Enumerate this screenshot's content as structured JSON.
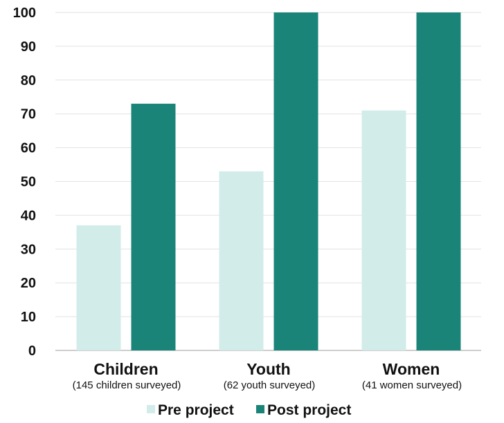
{
  "chart_data": {
    "type": "bar",
    "title": "",
    "xlabel": "",
    "ylabel": "",
    "ylim": [
      0,
      100
    ],
    "yticks": [
      0,
      10,
      20,
      30,
      40,
      50,
      60,
      70,
      80,
      90,
      100
    ],
    "grid": "horizontal",
    "legend_position": "bottom-center",
    "categories": [
      "Children",
      "Youth",
      "Women"
    ],
    "category_notes": [
      "(145 children surveyed)",
      "(62 youth surveyed)",
      "(41 women surveyed)"
    ],
    "series": [
      {
        "name": "Pre project",
        "color": "#d2ecea",
        "values": [
          37,
          53,
          71
        ]
      },
      {
        "name": "Post project",
        "color": "#1b8478",
        "values": [
          73,
          100,
          100
        ]
      }
    ]
  }
}
